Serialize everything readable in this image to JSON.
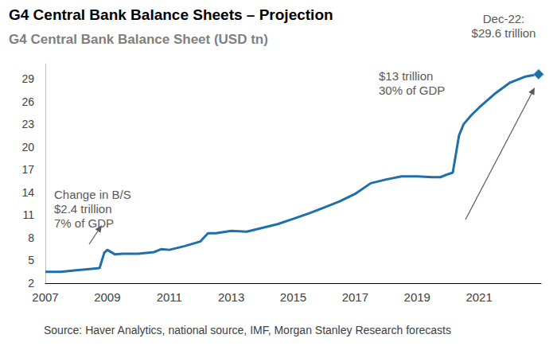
{
  "chart_data": {
    "type": "line",
    "title": "G4 Central Bank Balance Sheets – Projection",
    "subtitle": "G4 Central Bank Balance Sheet (USD tn)",
    "source": "Source: Haver Analytics, national source, IMF, Morgan Stanley Research forecasts",
    "x": [
      2007.0,
      2007.5,
      2008.0,
      2008.5,
      2008.75,
      2008.9,
      2009.0,
      2009.25,
      2009.5,
      2010.0,
      2010.5,
      2010.75,
      2011.0,
      2011.5,
      2012.0,
      2012.25,
      2012.5,
      2013.0,
      2013.5,
      2014.0,
      2014.5,
      2015.0,
      2015.5,
      2016.0,
      2016.5,
      2017.0,
      2017.5,
      2018.0,
      2018.5,
      2019.0,
      2019.5,
      2019.75,
      2020.0,
      2020.15,
      2020.35,
      2020.5,
      2020.75,
      2021.0,
      2021.5,
      2022.0,
      2022.5,
      2022.92
    ],
    "values": [
      3.5,
      3.5,
      3.7,
      3.9,
      4.0,
      6.0,
      6.4,
      5.8,
      5.9,
      5.9,
      6.1,
      6.5,
      6.4,
      6.9,
      7.5,
      8.6,
      8.6,
      8.9,
      8.8,
      9.3,
      9.8,
      10.5,
      11.2,
      12.0,
      12.8,
      13.8,
      15.2,
      15.7,
      16.1,
      16.1,
      16.0,
      16.0,
      16.4,
      16.6,
      21.5,
      23.0,
      24.2,
      25.2,
      27.0,
      28.5,
      29.3,
      29.6
    ],
    "color": "#1f70a8",
    "marker": "diamond",
    "xlim": [
      2007,
      2023
    ],
    "xticks": [
      2007,
      2009,
      2011,
      2013,
      2015,
      2017,
      2019,
      2021
    ],
    "ylim": [
      2,
      31
    ],
    "yticks": [
      2,
      5,
      8,
      11,
      14,
      17,
      20,
      23,
      26,
      29
    ],
    "grid": false,
    "annotations": [
      {
        "text": [
          "Change in B/S",
          "$2.4 trillion",
          "7% of GDP"
        ]
      },
      {
        "text": [
          "$13 trillion",
          "30% of GDP"
        ]
      },
      {
        "text": [
          "Dec-22:",
          "$29.6 trillion"
        ]
      }
    ]
  }
}
